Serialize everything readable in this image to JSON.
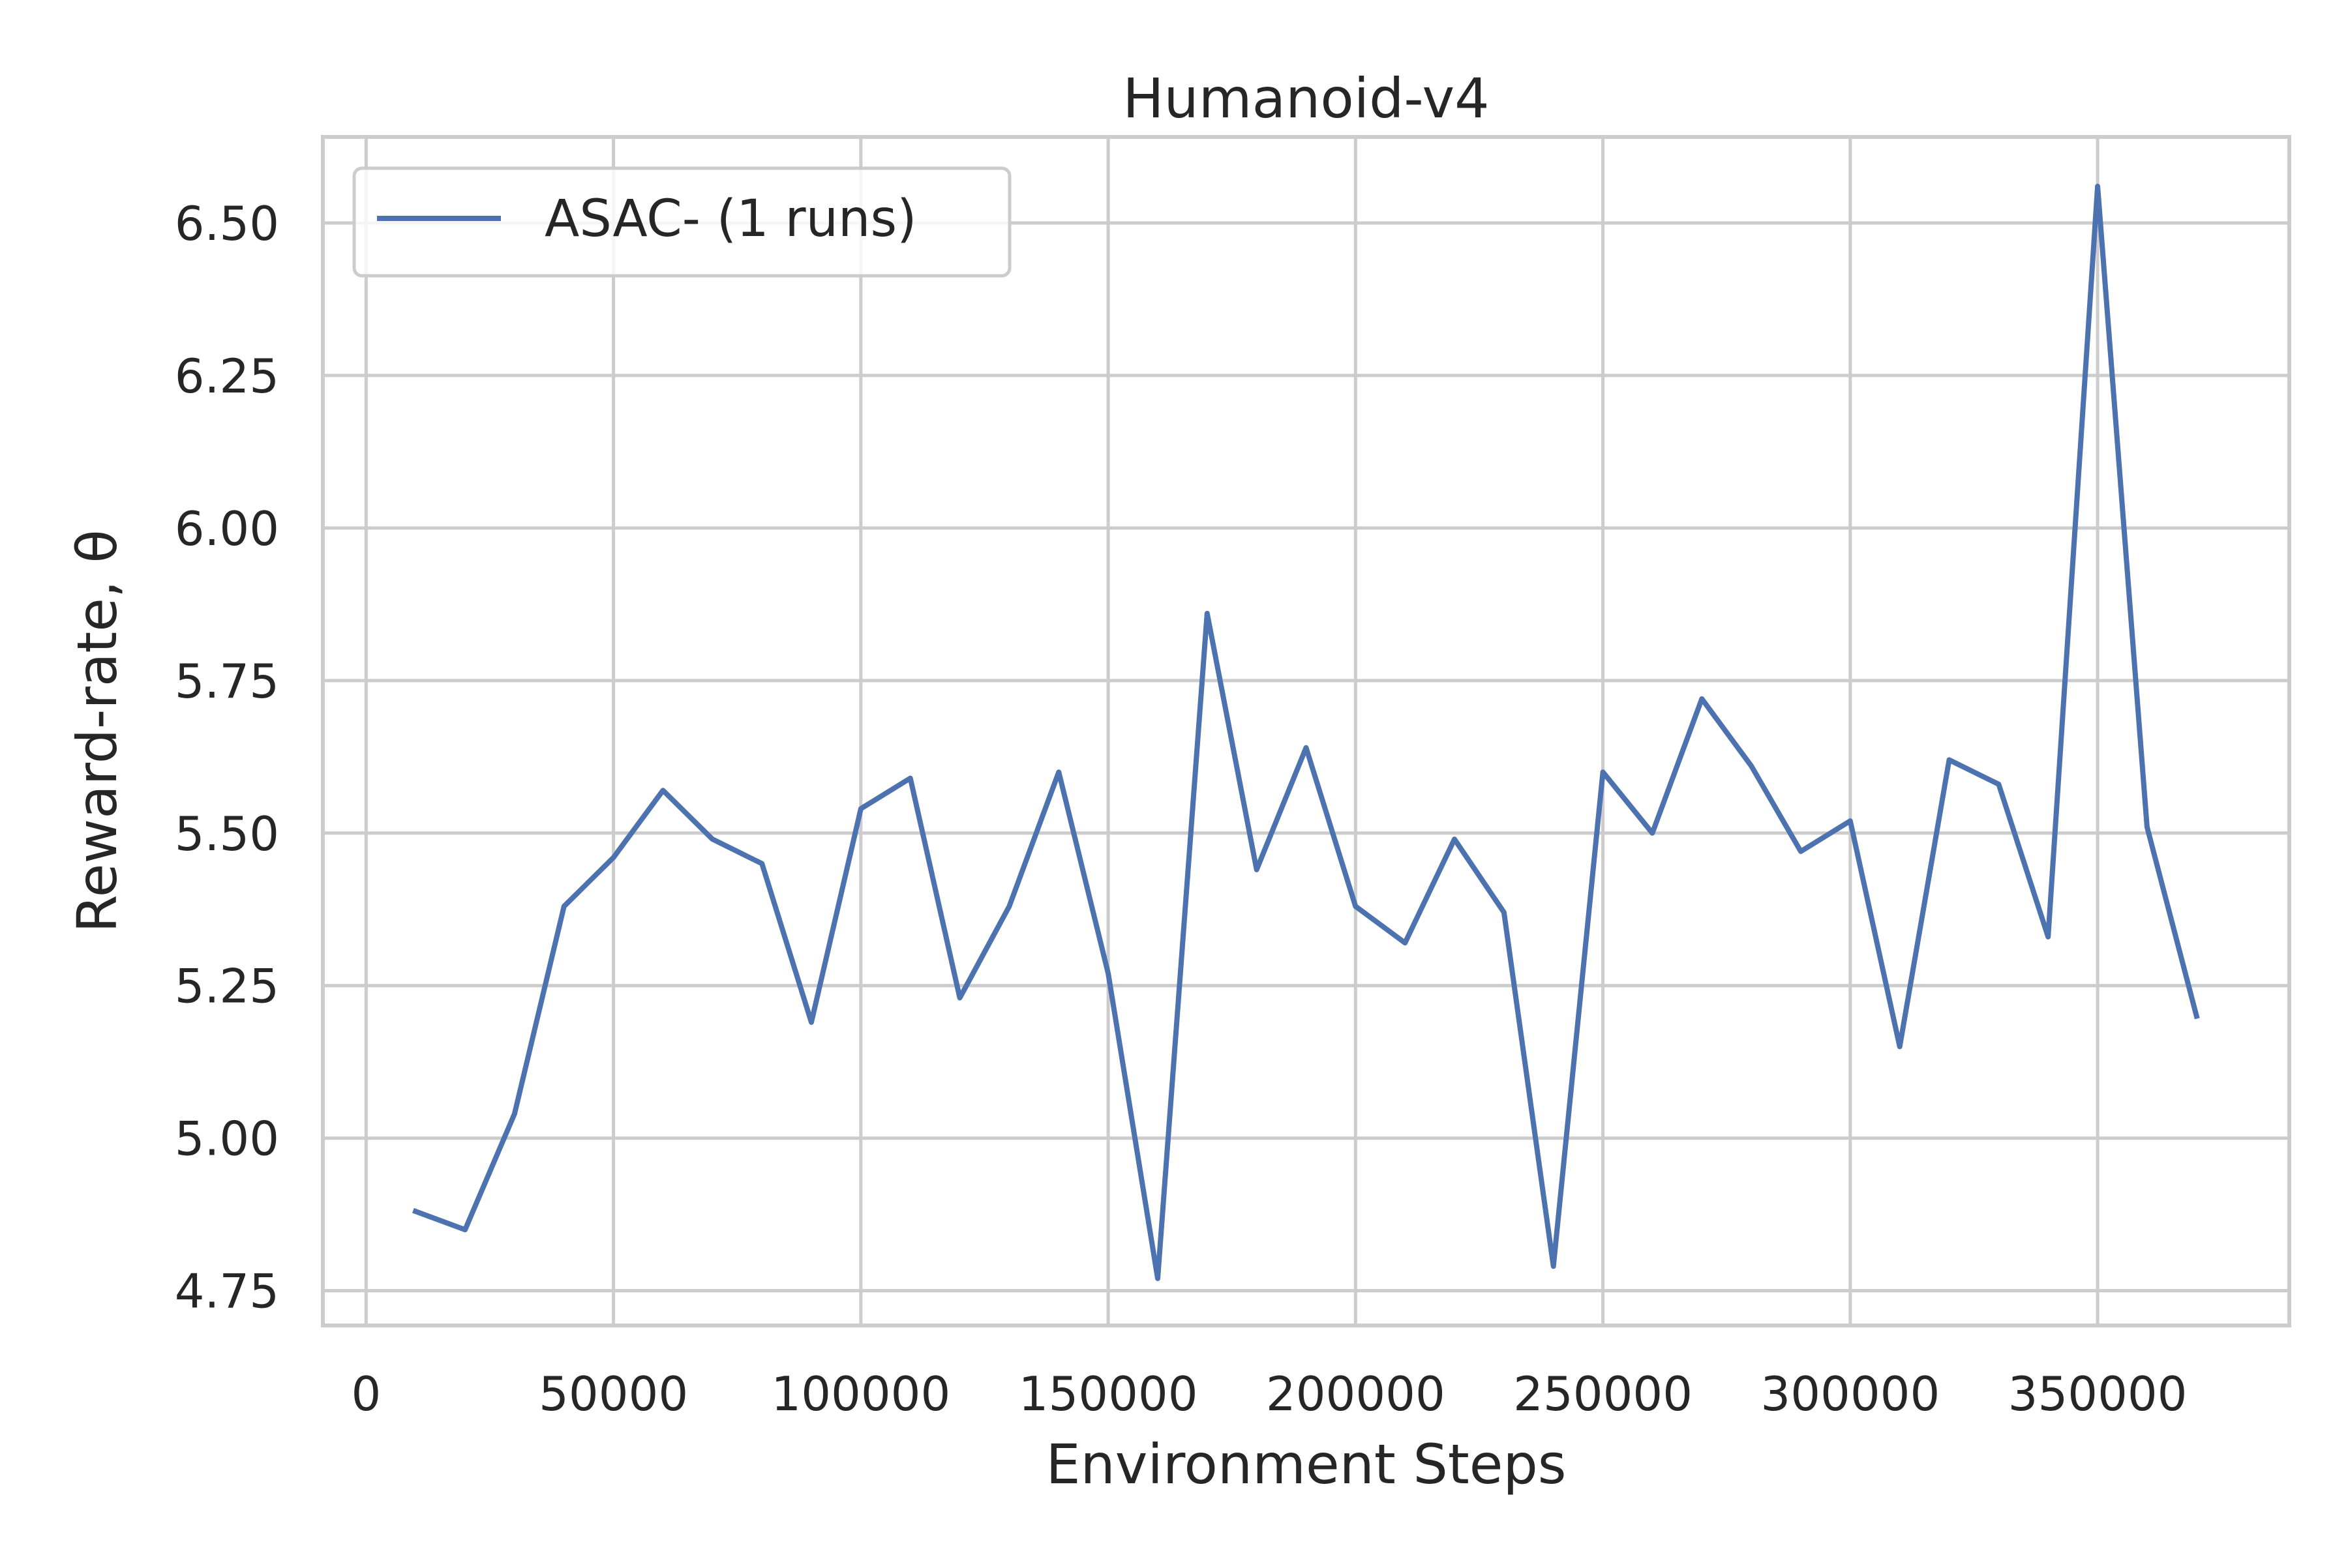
{
  "chart_data": {
    "type": "line",
    "title": "Humanoid-v4",
    "xlabel": "Environment Steps",
    "ylabel": "Reward-rate, θ",
    "xlim": [
      -8750,
      388750
    ],
    "ylim": [
      4.693,
      6.641
    ],
    "xticks": [
      0,
      50000,
      100000,
      150000,
      200000,
      250000,
      300000,
      350000
    ],
    "xtick_labels": [
      "0",
      "50000",
      "100000",
      "150000",
      "200000",
      "250000",
      "300000",
      "350000"
    ],
    "yticks": [
      4.75,
      5.0,
      5.25,
      5.5,
      5.75,
      6.0,
      6.25,
      6.5
    ],
    "ytick_labels": [
      "4.75",
      "5.00",
      "5.25",
      "5.50",
      "5.75",
      "6.00",
      "6.25",
      "6.50"
    ],
    "grid": true,
    "legend_position": "top-left",
    "series": [
      {
        "name": "ASAC- (1 runs)",
        "color": "#4c72b0",
        "x": [
          10000,
          20000,
          30000,
          40000,
          50000,
          60000,
          70000,
          80000,
          90000,
          100000,
          110000,
          120000,
          130000,
          140000,
          150000,
          160000,
          170000,
          180000,
          190000,
          200000,
          210000,
          220000,
          230000,
          240000,
          250000,
          260000,
          270000,
          280000,
          290000,
          300000,
          310000,
          320000,
          330000,
          340000,
          350000,
          360000,
          370000
        ],
        "y": [
          4.88,
          4.85,
          5.04,
          5.38,
          5.46,
          5.57,
          5.49,
          5.45,
          5.19,
          5.54,
          5.59,
          5.23,
          5.38,
          5.6,
          5.27,
          4.77,
          5.86,
          5.44,
          5.64,
          5.38,
          5.32,
          5.49,
          5.37,
          4.79,
          5.6,
          5.5,
          5.72,
          5.61,
          5.47,
          5.52,
          5.15,
          5.62,
          5.58,
          5.33,
          6.56,
          5.51,
          5.2
        ]
      }
    ]
  }
}
